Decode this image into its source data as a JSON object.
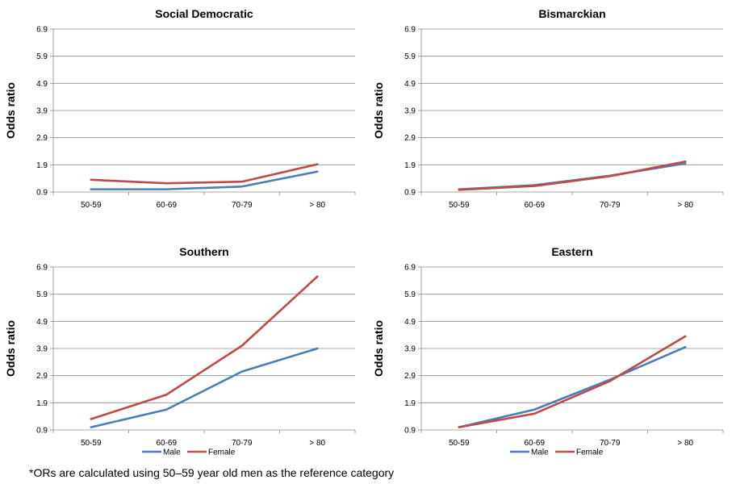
{
  "chart_data": [
    {
      "type": "line",
      "title": "Social Democratic",
      "ylabel": "Odds ratio",
      "categories": [
        "50-59",
        "60-69",
        "70-79",
        "> 80"
      ],
      "yticks": [
        "0.9",
        "1.9",
        "2.9",
        "3.9",
        "4.9",
        "5.9",
        "6.9"
      ],
      "ylim": [
        0.9,
        6.9
      ],
      "grid": true,
      "legend": false,
      "series": [
        {
          "name": "Male",
          "color": "#4a7ebb",
          "values": [
            1.0,
            1.0,
            1.1,
            1.65
          ]
        },
        {
          "name": "Female",
          "color": "#be4b48",
          "values": [
            1.35,
            1.22,
            1.28,
            1.92
          ]
        }
      ]
    },
    {
      "type": "line",
      "title": "Bismarckian",
      "ylabel": "Odds ratio",
      "categories": [
        "50-59",
        "60-69",
        "70-79",
        "> 80"
      ],
      "yticks": [
        "0.9",
        "1.9",
        "2.9",
        "3.9",
        "4.9",
        "5.9",
        "6.9"
      ],
      "ylim": [
        0.9,
        6.9
      ],
      "grid": true,
      "legend": false,
      "series": [
        {
          "name": "Male",
          "color": "#4a7ebb",
          "values": [
            1.0,
            1.15,
            1.5,
            1.95
          ]
        },
        {
          "name": "Female",
          "color": "#be4b48",
          "values": [
            0.98,
            1.12,
            1.48,
            2.02
          ]
        }
      ]
    },
    {
      "type": "line",
      "title": "Southern",
      "ylabel": "Odds ratio",
      "categories": [
        "50-59",
        "60-69",
        "70-79",
        "> 80"
      ],
      "yticks": [
        "0.9",
        "1.9",
        "2.9",
        "3.9",
        "4.9",
        "5.9",
        "6.9"
      ],
      "ylim": [
        0.9,
        6.9
      ],
      "grid": true,
      "legend": true,
      "series": [
        {
          "name": "Male",
          "color": "#4a7ebb",
          "values": [
            1.0,
            1.65,
            3.05,
            3.9
          ]
        },
        {
          "name": "Female",
          "color": "#be4b48",
          "values": [
            1.3,
            2.2,
            4.0,
            6.55
          ]
        }
      ]
    },
    {
      "type": "line",
      "title": "Eastern",
      "ylabel": "Odds ratio",
      "categories": [
        "50-59",
        "60-69",
        "70-79",
        "> 80"
      ],
      "yticks": [
        "0.9",
        "1.9",
        "2.9",
        "3.9",
        "4.9",
        "5.9",
        "6.9"
      ],
      "ylim": [
        0.9,
        6.9
      ],
      "grid": true,
      "legend": true,
      "series": [
        {
          "name": "Male",
          "color": "#4a7ebb",
          "values": [
            1.0,
            1.65,
            2.75,
            3.95
          ]
        },
        {
          "name": "Female",
          "color": "#be4b48",
          "values": [
            1.0,
            1.5,
            2.7,
            4.35
          ]
        }
      ]
    }
  ],
  "footnote": "*ORs are calculated using 50–59 year old men as the reference category"
}
